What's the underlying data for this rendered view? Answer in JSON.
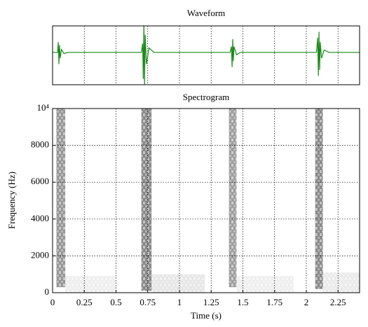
{
  "chart_data": [
    {
      "type": "line",
      "title": "Waveform",
      "x": [
        0,
        0.04,
        0.045,
        0.05,
        0.055,
        0.06,
        0.07,
        0.09,
        0.12,
        0.7,
        0.71,
        0.715,
        0.72,
        0.725,
        0.73,
        0.74,
        0.76,
        0.8,
        1.4,
        1.41,
        1.415,
        1.42,
        1.425,
        1.43,
        1.45,
        1.48,
        2.08,
        2.09,
        2.095,
        2.1,
        2.105,
        2.11,
        2.12,
        2.14,
        2.18,
        2.42
      ],
      "values": [
        0,
        0,
        0.35,
        -0.4,
        0.25,
        -0.2,
        0.1,
        -0.04,
        0,
        0,
        0.3,
        -0.9,
        1.0,
        -1.1,
        0.6,
        -0.4,
        0.15,
        0,
        0,
        0.2,
        -0.5,
        0.45,
        -0.3,
        0.2,
        -0.08,
        0,
        0,
        0.5,
        -0.8,
        0.7,
        -0.6,
        0.35,
        -0.2,
        0.08,
        0,
        0
      ],
      "color": "#1a8a1a",
      "xlim": [
        0,
        2.42
      ],
      "ylim": [
        -1.1,
        0.9
      ],
      "grid": true
    },
    {
      "type": "spectrogram",
      "title": "Spectrogram",
      "x_label": "Time (s)",
      "y_label": "Frequency (Hz)",
      "xlim": [
        0,
        2.42
      ],
      "ylim": [
        0,
        10000
      ],
      "xticks": [
        0,
        0.25,
        0.5,
        0.75,
        1,
        1.25,
        1.5,
        1.75,
        2,
        2.25
      ],
      "yticks": [
        0,
        2000,
        4000,
        6000,
        8000,
        {
          "value": 10000,
          "label": "10⁴"
        }
      ],
      "grid": true,
      "color": "#000000",
      "bursts": [
        {
          "start": 0.03,
          "end": 0.1,
          "fmin": 300,
          "fmax": 10000,
          "intensity": 0.75
        },
        {
          "start": 0.7,
          "end": 0.78,
          "fmin": 100,
          "fmax": 10000,
          "intensity": 0.85
        },
        {
          "start": 1.39,
          "end": 1.45,
          "fmin": 300,
          "fmax": 10000,
          "intensity": 0.7
        },
        {
          "start": 2.07,
          "end": 2.13,
          "fmin": 200,
          "fmax": 10000,
          "intensity": 0.85
        },
        {
          "start": 0.1,
          "end": 0.5,
          "fmin": 0,
          "fmax": 900,
          "intensity": 0.12
        },
        {
          "start": 0.78,
          "end": 1.2,
          "fmin": 0,
          "fmax": 1000,
          "intensity": 0.18
        },
        {
          "start": 1.45,
          "end": 1.9,
          "fmin": 0,
          "fmax": 900,
          "intensity": 0.12
        },
        {
          "start": 2.13,
          "end": 2.42,
          "fmin": 0,
          "fmax": 1100,
          "intensity": 0.15
        }
      ]
    }
  ]
}
